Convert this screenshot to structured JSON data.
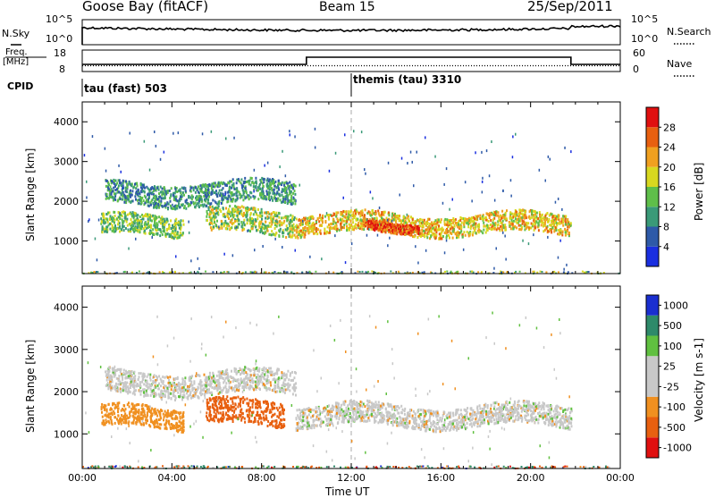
{
  "header": {
    "station": "Goose Bay (fitACF)",
    "beam": "Beam 15",
    "date": "25/Sep/2011"
  },
  "noise_panel": {
    "left_label": "N.Sky",
    "left_ticks": [
      "10^5",
      "10^0"
    ],
    "right_ticks": [
      "10^5",
      "10^0"
    ],
    "right_label": "N.Search"
  },
  "freq_panel": {
    "left_label_1": "Freq.",
    "left_label_2": "[MHz]",
    "left_ticks": [
      "18",
      "8"
    ],
    "right_ticks": [
      "60",
      "0"
    ],
    "right_label": "Nave"
  },
  "cpid": {
    "label": "CPID",
    "segments": [
      {
        "name": "tau (fast) 503",
        "start_hour": 0
      },
      {
        "name": "themis (tau) 3310",
        "start_hour": 12
      }
    ]
  },
  "colors": {
    "noise_line": "#000000",
    "power_scale": [
      "#1a2fe0",
      "#2e5aa8",
      "#3a9a78",
      "#5fbf4a",
      "#d8d820",
      "#f0a020",
      "#e86010",
      "#e01010"
    ],
    "velocity_scale": [
      "#e01010",
      "#e86010",
      "#f09020",
      "#c8c8c8",
      "#c8c8c8",
      "#60c040",
      "#2e8a6a",
      "#1a2fd0"
    ]
  },
  "chart_data": [
    {
      "type": "heatmap",
      "name": "power",
      "ylabel": "Slant Range [km]",
      "yticks": [
        "1000",
        "2000",
        "3000",
        "4000"
      ],
      "ylim": [
        180,
        4500
      ],
      "xlim": [
        0,
        24
      ],
      "colorbar_label": "Power [dB]",
      "colorbar_ticks": [
        "4",
        "8",
        "12",
        "16",
        "20",
        "24",
        "28"
      ],
      "color_range": [
        0,
        32
      ],
      "echo_bands": [
        {
          "t_start": 0.8,
          "t_end": 4.5,
          "range_low": 1150,
          "range_high": 1650,
          "value": 14
        },
        {
          "t_start": 1.0,
          "t_end": 9.5,
          "range_low": 1950,
          "range_high": 2500,
          "value": 10
        },
        {
          "t_start": 5.5,
          "t_end": 9.5,
          "range_low": 1200,
          "range_high": 1800,
          "value": 16
        },
        {
          "t_start": 9.5,
          "t_end": 21.8,
          "range_low": 1200,
          "range_high": 1700,
          "value": 20
        },
        {
          "t_start": 12.5,
          "t_end": 15.0,
          "range_low": 1300,
          "range_high": 1550,
          "value": 27
        }
      ]
    },
    {
      "type": "heatmap",
      "name": "velocity",
      "ylabel": "Slant Range [km]",
      "yticks": [
        "1000",
        "2000",
        "3000",
        "4000"
      ],
      "ylim": [
        180,
        4500
      ],
      "xlim": [
        0,
        24
      ],
      "xlabel": "Time UT",
      "xticks": [
        "00:00",
        "04:00",
        "08:00",
        "12:00",
        "16:00",
        "20:00",
        "00:00"
      ],
      "colorbar_label": "Velocity [m s-1]",
      "colorbar_ticks": [
        "1000",
        "500",
        "100",
        "25",
        "-25",
        "-100",
        "-500",
        "-1000"
      ],
      "echo_bands": [
        {
          "t_start": 0.8,
          "t_end": 4.5,
          "range_low": 1150,
          "range_high": 1650,
          "value": -60
        },
        {
          "t_start": 1.0,
          "t_end": 9.5,
          "range_low": 1950,
          "range_high": 2500,
          "value": 0
        },
        {
          "t_start": 5.5,
          "t_end": 9.0,
          "range_low": 1200,
          "range_high": 1800,
          "value": -150
        },
        {
          "t_start": 9.5,
          "t_end": 21.8,
          "range_low": 1200,
          "range_high": 1700,
          "value": 0
        }
      ]
    }
  ]
}
